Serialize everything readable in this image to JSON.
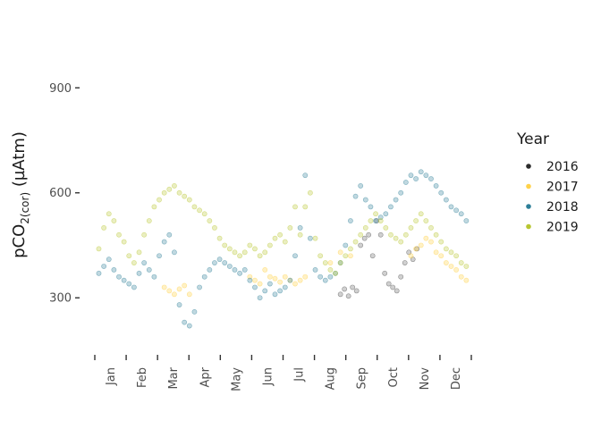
{
  "chart_data": {
    "type": "scatter",
    "title": "",
    "ylabel": "pCO2(cor) (µAtm)",
    "ylabel_parts": {
      "base": "pCO",
      "subscript": "2(cor)",
      "unit": " (µAtm)"
    },
    "xlabel": "",
    "x_unit": "day of year",
    "xlim": [
      -4,
      370
    ],
    "ylim": [
      155,
      1105
    ],
    "y_ticks": [
      300,
      600,
      900
    ],
    "x_categories": [
      "Jan",
      "Feb",
      "Mar",
      "Apr",
      "May",
      "Jun",
      "Jul",
      "Aug",
      "Sep",
      "Oct",
      "Nov",
      "Dec"
    ],
    "grid": false,
    "legend": {
      "title": "Year",
      "position": "right"
    },
    "series": [
      {
        "name": "2016",
        "color": "#2b2b2b",
        "opacity": 0.22,
        "x": [
          240,
          244,
          248,
          252,
          256,
          260,
          264,
          268,
          272,
          276,
          280,
          284,
          288,
          292,
          296,
          300,
          304,
          308,
          312,
          316
        ],
        "y": [
          310,
          325,
          305,
          330,
          320,
          450,
          470,
          480,
          420,
          520,
          480,
          370,
          340,
          330,
          320,
          360,
          400,
          430,
          410,
          440
        ]
      },
      {
        "name": "2017",
        "color": "#ffd24a",
        "opacity": 0.32,
        "x": [
          65,
          70,
          75,
          80,
          85,
          90,
          150,
          155,
          160,
          165,
          170,
          175,
          180,
          185,
          190,
          195,
          200,
          205,
          230,
          240,
          250,
          310,
          315,
          320,
          325,
          330,
          335,
          340,
          345,
          350,
          355,
          360,
          365
        ],
        "y": [
          330,
          320,
          310,
          325,
          335,
          310,
          360,
          350,
          340,
          380,
          360,
          355,
          345,
          360,
          350,
          340,
          350,
          360,
          400,
          430,
          420,
          420,
          440,
          450,
          470,
          460,
          430,
          420,
          400,
          390,
          380,
          360,
          350
        ]
      },
      {
        "name": "2018",
        "color": "#2d7f98",
        "opacity": 0.3,
        "x": [
          0,
          5,
          10,
          15,
          20,
          25,
          30,
          35,
          40,
          45,
          50,
          55,
          60,
          65,
          70,
          75,
          80,
          85,
          90,
          95,
          100,
          105,
          110,
          115,
          120,
          125,
          130,
          135,
          140,
          145,
          150,
          155,
          160,
          165,
          170,
          175,
          180,
          185,
          190,
          195,
          200,
          205,
          210,
          215,
          220,
          225,
          230,
          235,
          240,
          245,
          250,
          255,
          260,
          265,
          270,
          275,
          280,
          285,
          290,
          295,
          300,
          305,
          310,
          315,
          320,
          325,
          330,
          335,
          340,
          345,
          350,
          355,
          360,
          365
        ],
        "y": [
          370,
          390,
          410,
          380,
          360,
          350,
          340,
          330,
          370,
          400,
          380,
          360,
          420,
          460,
          480,
          430,
          280,
          230,
          220,
          260,
          330,
          360,
          380,
          400,
          410,
          400,
          390,
          380,
          370,
          380,
          350,
          330,
          300,
          320,
          340,
          310,
          320,
          330,
          350,
          420,
          500,
          650,
          470,
          380,
          360,
          350,
          360,
          370,
          400,
          450,
          520,
          590,
          620,
          580,
          560,
          520,
          530,
          540,
          560,
          580,
          600,
          630,
          650,
          640,
          660,
          650,
          640,
          620,
          600,
          580,
          560,
          550,
          540,
          520
        ]
      },
      {
        "name": "2019",
        "color": "#b8c631",
        "opacity": 0.3,
        "x": [
          0,
          5,
          10,
          15,
          20,
          25,
          30,
          35,
          40,
          45,
          50,
          55,
          60,
          65,
          70,
          75,
          80,
          85,
          90,
          95,
          100,
          105,
          110,
          115,
          120,
          125,
          130,
          135,
          140,
          145,
          150,
          155,
          160,
          165,
          170,
          175,
          180,
          185,
          190,
          195,
          200,
          205,
          210,
          215,
          220,
          225,
          230,
          235,
          240,
          245,
          250,
          255,
          260,
          265,
          270,
          275,
          280,
          285,
          290,
          295,
          300,
          305,
          310,
          315,
          320,
          325,
          330,
          335,
          340,
          345,
          350,
          355,
          360,
          365
        ],
        "y": [
          440,
          500,
          540,
          520,
          480,
          460,
          420,
          400,
          430,
          480,
          520,
          560,
          580,
          600,
          610,
          620,
          600,
          590,
          580,
          560,
          550,
          540,
          520,
          500,
          470,
          450,
          440,
          430,
          420,
          430,
          450,
          440,
          420,
          430,
          450,
          470,
          480,
          460,
          500,
          560,
          480,
          560,
          600,
          470,
          420,
          400,
          380,
          370,
          400,
          420,
          440,
          460,
          480,
          500,
          520,
          540,
          520,
          500,
          480,
          470,
          460,
          480,
          500,
          520,
          540,
          520,
          500,
          480,
          460,
          440,
          430,
          420,
          400,
          390
        ]
      }
    ]
  }
}
